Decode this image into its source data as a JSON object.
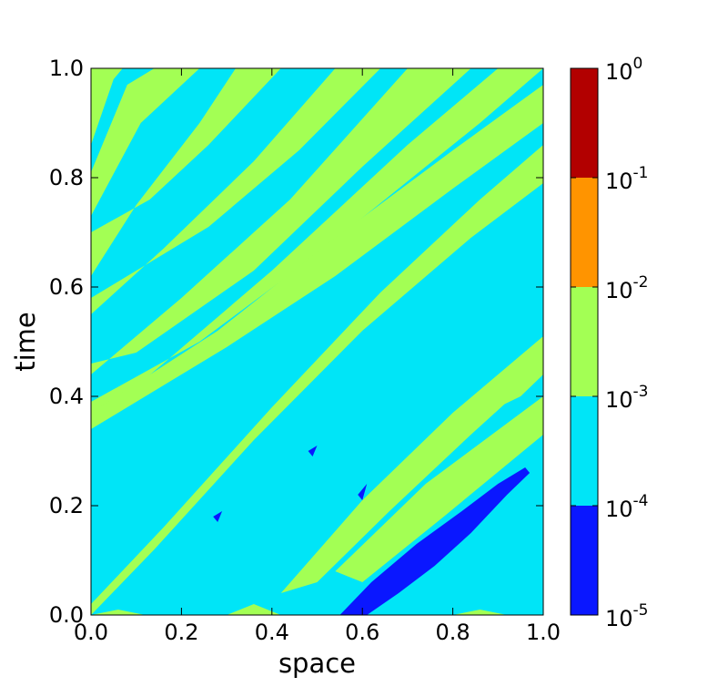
{
  "chart_data": {
    "type": "heatmap",
    "title": "",
    "xlabel": "space",
    "ylabel": "time",
    "xlim": [
      0.0,
      1.0
    ],
    "ylim": [
      0.0,
      1.0
    ],
    "x_ticks": [
      "0.0",
      "0.2",
      "0.4",
      "0.6",
      "0.8",
      "1.0"
    ],
    "y_ticks": [
      "0.0",
      "0.2",
      "0.4",
      "0.6",
      "0.8",
      "1.0"
    ],
    "colorbar": {
      "scale": "log",
      "levels": [
        {
          "base": "10",
          "exp": "-5",
          "value": 1e-05
        },
        {
          "base": "10",
          "exp": "-4",
          "value": 0.0001
        },
        {
          "base": "10",
          "exp": "-3",
          "value": 0.001
        },
        {
          "base": "10",
          "exp": "-2",
          "value": 0.01
        },
        {
          "base": "10",
          "exp": "-1",
          "value": 0.1
        },
        {
          "base": "10",
          "exp": "0",
          "value": 1
        }
      ],
      "bins": [
        {
          "range": [
            1e-05,
            0.0001
          ],
          "color": "#0a17ff"
        },
        {
          "range": [
            0.0001,
            0.001
          ],
          "color": "#00e5f7"
        },
        {
          "range": [
            0.001,
            0.01
          ],
          "color": "#a3ff54"
        },
        {
          "range": [
            0.01,
            0.1
          ],
          "color": "#ff9400"
        },
        {
          "range": [
            0.1,
            1
          ],
          "color": "#b20000"
        }
      ]
    },
    "background_value_bin": 1,
    "regions": [
      {
        "bin": 2,
        "pts": [
          [
            0.0,
            0.86
          ],
          [
            0.05,
            0.98
          ],
          [
            0.07,
            1.0
          ],
          [
            0.0,
            1.0
          ]
        ]
      },
      {
        "bin": 2,
        "pts": [
          [
            0.0,
            0.81
          ],
          [
            0.08,
            0.97
          ],
          [
            0.14,
            1.0
          ],
          [
            0.24,
            1.0
          ],
          [
            0.11,
            0.9
          ],
          [
            0.0,
            0.73
          ]
        ]
      },
      {
        "bin": 2,
        "pts": [
          [
            0.0,
            0.62
          ],
          [
            0.1,
            0.75
          ],
          [
            0.24,
            0.9
          ],
          [
            0.32,
            1.0
          ],
          [
            0.42,
            1.0
          ],
          [
            0.26,
            0.86
          ],
          [
            0.13,
            0.76
          ],
          [
            0.0,
            0.7
          ]
        ]
      },
      {
        "bin": 2,
        "pts": [
          [
            0.0,
            0.55
          ],
          [
            0.16,
            0.67
          ],
          [
            0.36,
            0.83
          ],
          [
            0.54,
            1.0
          ],
          [
            0.64,
            1.0
          ],
          [
            0.46,
            0.85
          ],
          [
            0.26,
            0.71
          ],
          [
            0.0,
            0.58
          ]
        ]
      },
      {
        "bin": 2,
        "pts": [
          [
            0.0,
            0.44
          ],
          [
            0.2,
            0.58
          ],
          [
            0.44,
            0.76
          ],
          [
            0.7,
            1.0
          ],
          [
            0.84,
            1.0
          ],
          [
            0.6,
            0.82
          ],
          [
            0.36,
            0.63
          ],
          [
            0.1,
            0.48
          ],
          [
            0.0,
            0.46
          ]
        ]
      },
      {
        "bin": 2,
        "pts": [
          [
            0.0,
            0.35
          ],
          [
            0.16,
            0.46
          ],
          [
            0.4,
            0.63
          ],
          [
            0.7,
            0.86
          ],
          [
            0.9,
            1.0
          ],
          [
            1.0,
            1.0
          ],
          [
            0.86,
            0.9
          ],
          [
            0.5,
            0.66
          ],
          [
            0.24,
            0.5
          ],
          [
            0.0,
            0.39
          ]
        ]
      },
      {
        "bin": 2,
        "pts": [
          [
            0.0,
            0.34
          ],
          [
            0.3,
            0.49
          ],
          [
            0.54,
            0.62
          ],
          [
            0.8,
            0.78
          ],
          [
            1.0,
            0.9
          ],
          [
            1.0,
            0.97
          ],
          [
            0.8,
            0.85
          ],
          [
            0.54,
            0.69
          ],
          [
            0.28,
            0.52
          ],
          [
            0.0,
            0.37
          ]
        ]
      },
      {
        "bin": 2,
        "pts": [
          [
            0.0,
            0.02
          ],
          [
            0.16,
            0.16
          ],
          [
            0.4,
            0.38
          ],
          [
            0.64,
            0.59
          ],
          [
            0.86,
            0.76
          ],
          [
            1.0,
            0.86
          ],
          [
            1.0,
            0.79
          ],
          [
            0.84,
            0.69
          ],
          [
            0.6,
            0.52
          ],
          [
            0.36,
            0.32
          ],
          [
            0.14,
            0.12
          ],
          [
            0.0,
            0.0
          ]
        ]
      },
      {
        "bin": 2,
        "pts": [
          [
            0.42,
            0.04
          ],
          [
            0.6,
            0.21
          ],
          [
            0.8,
            0.37
          ],
          [
            1.0,
            0.51
          ],
          [
            1.0,
            0.45
          ],
          [
            0.84,
            0.33
          ],
          [
            0.66,
            0.19
          ],
          [
            0.5,
            0.06
          ]
        ]
      },
      {
        "bin": 2,
        "pts": [
          [
            0.54,
            0.08
          ],
          [
            0.74,
            0.24
          ],
          [
            1.0,
            0.4
          ],
          [
            1.0,
            0.33
          ],
          [
            0.78,
            0.18
          ],
          [
            0.6,
            0.06
          ]
        ]
      },
      {
        "bin": 2,
        "pts": [
          [
            0.9,
            0.38
          ],
          [
            1.0,
            0.5
          ],
          [
            1.0,
            0.44
          ],
          [
            0.95,
            0.4
          ]
        ]
      },
      {
        "bin": 2,
        "pts": [
          [
            0.0,
            0.0
          ],
          [
            0.06,
            0.01
          ],
          [
            0.12,
            0.0
          ]
        ]
      },
      {
        "bin": 2,
        "pts": [
          [
            0.3,
            0.0
          ],
          [
            0.36,
            0.02
          ],
          [
            0.42,
            0.0
          ]
        ]
      },
      {
        "bin": 2,
        "pts": [
          [
            0.8,
            0.0
          ],
          [
            0.86,
            0.01
          ],
          [
            0.92,
            0.0
          ]
        ]
      },
      {
        "bin": 0,
        "pts": [
          [
            0.55,
            0.0
          ],
          [
            0.62,
            0.06
          ],
          [
            0.72,
            0.13
          ],
          [
            0.82,
            0.19
          ],
          [
            0.9,
            0.24
          ],
          [
            0.96,
            0.27
          ],
          [
            0.97,
            0.26
          ],
          [
            0.92,
            0.22
          ],
          [
            0.84,
            0.15
          ],
          [
            0.76,
            0.09
          ],
          [
            0.68,
            0.04
          ],
          [
            0.61,
            0.0
          ]
        ]
      },
      {
        "bin": 0,
        "pts": [
          [
            0.27,
            0.18
          ],
          [
            0.29,
            0.19
          ],
          [
            0.28,
            0.17
          ]
        ]
      },
      {
        "bin": 0,
        "pts": [
          [
            0.59,
            0.22
          ],
          [
            0.61,
            0.24
          ],
          [
            0.6,
            0.21
          ]
        ]
      },
      {
        "bin": 0,
        "pts": [
          [
            0.48,
            0.3
          ],
          [
            0.5,
            0.31
          ],
          [
            0.49,
            0.29
          ]
        ]
      }
    ]
  }
}
